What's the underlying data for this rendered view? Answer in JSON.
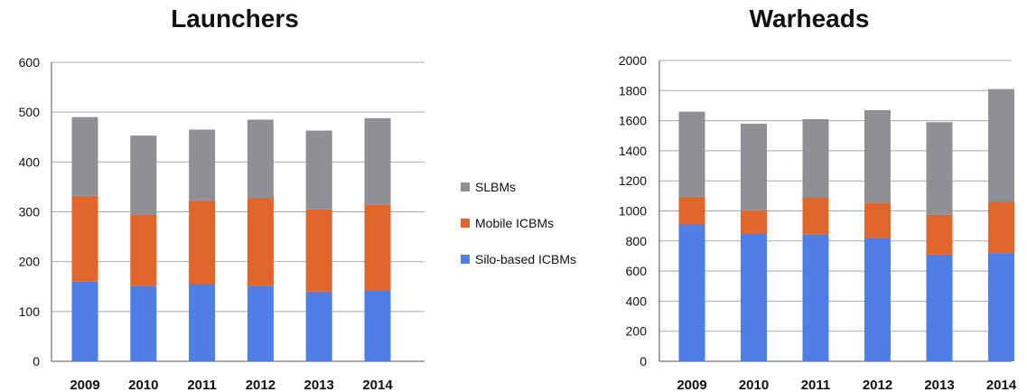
{
  "colors": {
    "silo": "#4f7ee6",
    "mobile": "#e0662c",
    "slbm": "#8f8f95",
    "grid": "#a9a9a9",
    "axis": "#555555"
  },
  "legend": {
    "items": [
      {
        "label": "SLBMs",
        "color": "#8f8f95"
      },
      {
        "label": "Mobile ICBMs",
        "color": "#e0662c"
      },
      {
        "label": "Silo-based ICBMs",
        "color": "#4f7ee6"
      }
    ]
  },
  "chart_data": [
    {
      "type": "bar",
      "stacked": true,
      "title": "Launchers",
      "categories": [
        "2009",
        "2010",
        "2011",
        "2012",
        "2013",
        "2014"
      ],
      "ylim": [
        0,
        600
      ],
      "yticks": [
        0,
        100,
        200,
        300,
        400,
        500,
        600
      ],
      "grid": true,
      "legend": "center-right",
      "series": [
        {
          "name": "Silo-based ICBMs",
          "values": [
            160,
            152,
            155,
            152,
            140,
            143
          ]
        },
        {
          "name": "Mobile ICBMs",
          "values": [
            172,
            143,
            168,
            176,
            165,
            172
          ]
        },
        {
          "name": "SLBMs",
          "values": [
            158,
            158,
            142,
            157,
            158,
            173
          ]
        }
      ]
    },
    {
      "type": "bar",
      "stacked": true,
      "title": "Warheads",
      "categories": [
        "2009",
        "2010",
        "2011",
        "2012",
        "2013",
        "2014"
      ],
      "ylim": [
        0,
        2000
      ],
      "yticks": [
        0,
        200,
        400,
        600,
        800,
        1000,
        1200,
        1400,
        1600,
        1800,
        2000
      ],
      "grid": true,
      "legend": "center-left",
      "series": [
        {
          "name": "Silo-based ICBMs",
          "values": [
            910,
            850,
            845,
            820,
            710,
            720
          ]
        },
        {
          "name": "Mobile ICBMs",
          "values": [
            185,
            155,
            245,
            235,
            265,
            340
          ]
        },
        {
          "name": "SLBMs",
          "values": [
            565,
            575,
            520,
            615,
            615,
            750
          ]
        }
      ]
    }
  ]
}
